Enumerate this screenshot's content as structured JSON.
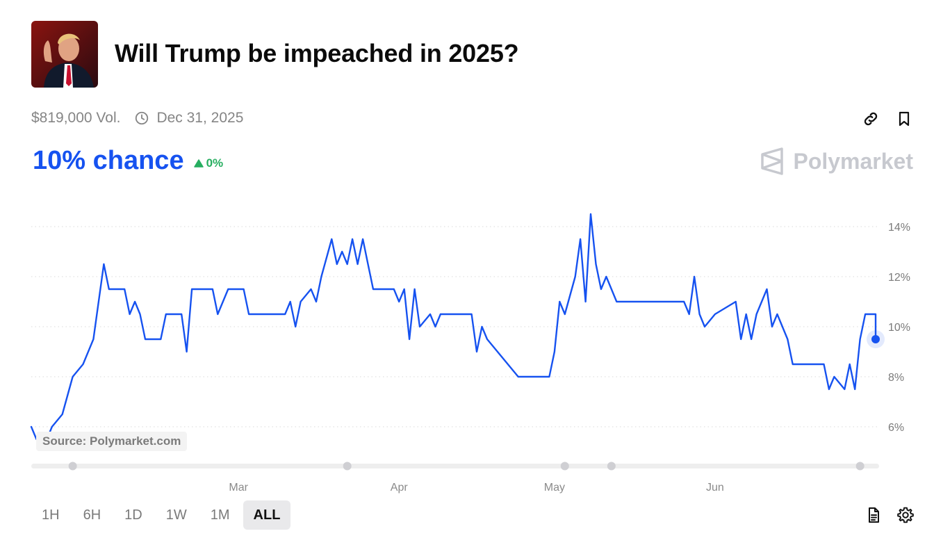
{
  "market": {
    "title": "Will Trump be impeached in 2025?",
    "volume": "$819,000 Vol.",
    "end_date": "Dec 31, 2025",
    "chance": "10% chance",
    "change": "0%",
    "brand": "Polymarket",
    "source_label": "Source: Polymarket.com"
  },
  "icons": {
    "avatar": "trump-photo",
    "date": "clock-icon",
    "share": "link-icon",
    "save": "bookmark-icon",
    "change": "triangle-up-icon",
    "brand": "polymarket-logo-icon",
    "notes": "document-icon",
    "settings": "gear-icon"
  },
  "range_tabs": [
    "1H",
    "6H",
    "1D",
    "1W",
    "1M",
    "ALL"
  ],
  "active_range": "ALL",
  "colors": {
    "accent": "#1652f0",
    "positive": "#27ae60",
    "muted": "#858585"
  },
  "chart_data": {
    "type": "line",
    "series": [
      {
        "values": [
          [
            "2025-01-20",
            6.0
          ],
          [
            "2025-01-21",
            5.5
          ],
          [
            "2025-01-23",
            5.5
          ],
          [
            "2025-01-24",
            6.0
          ],
          [
            "2025-01-26",
            6.5
          ],
          [
            "2025-01-28",
            8.0
          ],
          [
            "2025-01-30",
            8.5
          ],
          [
            "2025-02-01",
            9.5
          ],
          [
            "2025-02-03",
            12.5
          ],
          [
            "2025-02-04",
            11.5
          ],
          [
            "2025-02-07",
            11.5
          ],
          [
            "2025-02-08",
            10.5
          ],
          [
            "2025-02-09",
            11.0
          ],
          [
            "2025-02-10",
            10.5
          ],
          [
            "2025-02-11",
            9.5
          ],
          [
            "2025-02-14",
            9.5
          ],
          [
            "2025-02-15",
            10.5
          ],
          [
            "2025-02-18",
            10.5
          ],
          [
            "2025-02-19",
            9.0
          ],
          [
            "2025-02-20",
            11.5
          ],
          [
            "2025-02-24",
            11.5
          ],
          [
            "2025-02-25",
            10.5
          ],
          [
            "2025-02-27",
            11.5
          ],
          [
            "2025-03-02",
            11.5
          ],
          [
            "2025-03-03",
            10.5
          ],
          [
            "2025-03-10",
            10.5
          ],
          [
            "2025-03-11",
            11.0
          ],
          [
            "2025-03-12",
            10.0
          ],
          [
            "2025-03-13",
            11.0
          ],
          [
            "2025-03-15",
            11.5
          ],
          [
            "2025-03-16",
            11.0
          ],
          [
            "2025-03-17",
            12.0
          ],
          [
            "2025-03-19",
            13.5
          ],
          [
            "2025-03-20",
            12.5
          ],
          [
            "2025-03-21",
            13.0
          ],
          [
            "2025-03-22",
            12.5
          ],
          [
            "2025-03-23",
            13.5
          ],
          [
            "2025-03-24",
            12.5
          ],
          [
            "2025-03-25",
            13.5
          ],
          [
            "2025-03-26",
            12.5
          ],
          [
            "2025-03-27",
            11.5
          ],
          [
            "2025-03-31",
            11.5
          ],
          [
            "2025-04-01",
            11.0
          ],
          [
            "2025-04-02",
            11.5
          ],
          [
            "2025-04-03",
            9.5
          ],
          [
            "2025-04-04",
            11.5
          ],
          [
            "2025-04-05",
            10.0
          ],
          [
            "2025-04-07",
            10.5
          ],
          [
            "2025-04-08",
            10.0
          ],
          [
            "2025-04-09",
            10.5
          ],
          [
            "2025-04-15",
            10.5
          ],
          [
            "2025-04-16",
            9.0
          ],
          [
            "2025-04-17",
            10.0
          ],
          [
            "2025-04-18",
            9.5
          ],
          [
            "2025-04-20",
            9.0
          ],
          [
            "2025-04-24",
            8.0
          ],
          [
            "2025-04-30",
            8.0
          ],
          [
            "2025-05-01",
            9.0
          ],
          [
            "2025-05-02",
            11.0
          ],
          [
            "2025-05-03",
            10.5
          ],
          [
            "2025-05-05",
            12.0
          ],
          [
            "2025-05-06",
            13.5
          ],
          [
            "2025-05-07",
            11.0
          ],
          [
            "2025-05-08",
            14.5
          ],
          [
            "2025-05-09",
            12.5
          ],
          [
            "2025-05-10",
            11.5
          ],
          [
            "2025-05-11",
            12.0
          ],
          [
            "2025-05-13",
            11.0
          ],
          [
            "2025-05-15",
            11.0
          ],
          [
            "2025-05-26",
            11.0
          ],
          [
            "2025-05-27",
            10.5
          ],
          [
            "2025-05-28",
            12.0
          ],
          [
            "2025-05-29",
            10.5
          ],
          [
            "2025-05-30",
            10.0
          ],
          [
            "2025-06-01",
            10.5
          ],
          [
            "2025-06-05",
            11.0
          ],
          [
            "2025-06-06",
            9.5
          ],
          [
            "2025-06-07",
            10.5
          ],
          [
            "2025-06-08",
            9.5
          ],
          [
            "2025-06-09",
            10.5
          ],
          [
            "2025-06-11",
            11.5
          ],
          [
            "2025-06-12",
            10.0
          ],
          [
            "2025-06-13",
            10.5
          ],
          [
            "2025-06-15",
            9.5
          ],
          [
            "2025-06-16",
            8.5
          ],
          [
            "2025-06-22",
            8.5
          ],
          [
            "2025-06-23",
            7.5
          ],
          [
            "2025-06-24",
            8.0
          ],
          [
            "2025-06-26",
            7.5
          ],
          [
            "2025-06-27",
            8.5
          ],
          [
            "2025-06-28",
            7.5
          ],
          [
            "2025-06-29",
            9.5
          ],
          [
            "2025-06-30",
            10.5
          ],
          [
            "2025-07-02",
            10.5
          ],
          [
            "2025-07-02",
            9.5
          ]
        ]
      }
    ],
    "x_ticks": [
      "Mar",
      "Apr",
      "May",
      "Jun"
    ],
    "x_tick_dates": [
      "2025-03-01",
      "2025-04-01",
      "2025-05-01",
      "2025-06-01"
    ],
    "xlim": [
      "2025-01-20",
      "2025-07-02"
    ],
    "y_ticks": [
      "6%",
      "8%",
      "10%",
      "12%",
      "14%"
    ],
    "y_tick_values": [
      6,
      8,
      10,
      12,
      14
    ],
    "ylim": [
      5,
      15
    ],
    "grid": true,
    "y_axis": "right"
  }
}
